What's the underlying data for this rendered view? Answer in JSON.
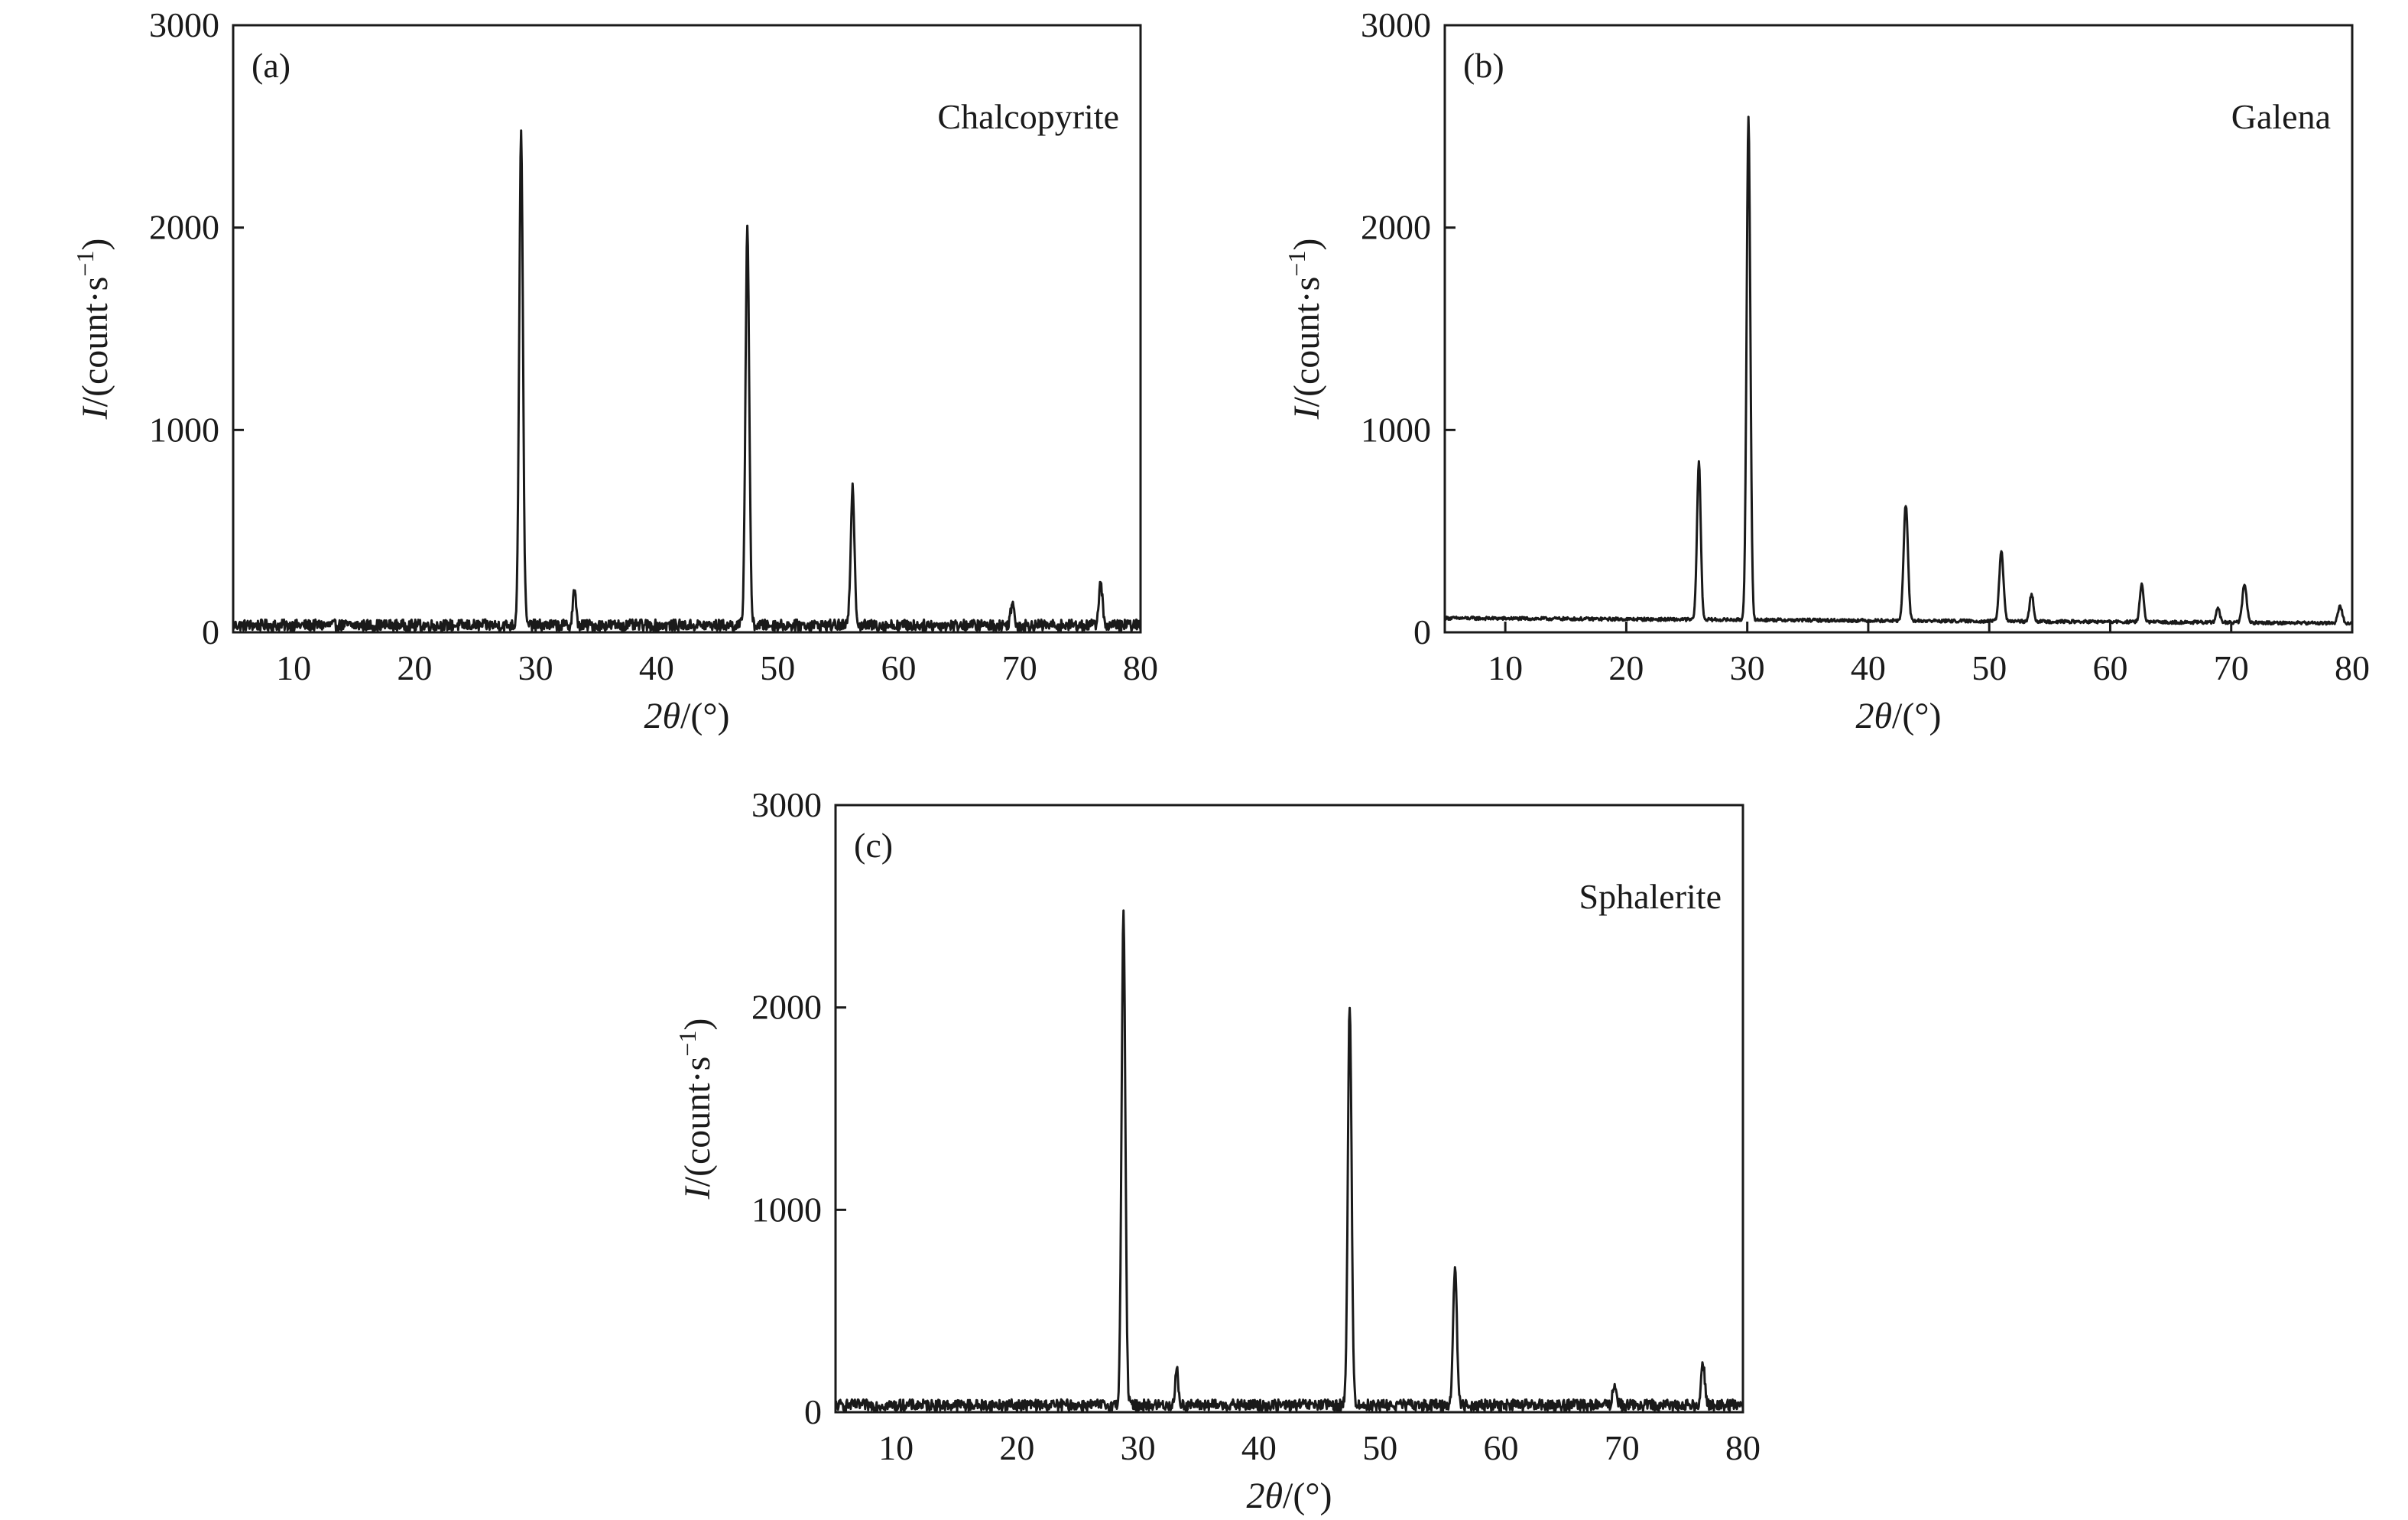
{
  "chart_data": [
    {
      "type": "line",
      "panel_label": "(a)",
      "series_label": "Chalcopyrite",
      "xlabel_var": "2θ",
      "xlabel_unit": "/(°)",
      "ylabel_var": "I",
      "ylabel_unit": "/(count·s",
      "ylabel_exp": "−1",
      "ylabel_close": ")",
      "xlim": [
        5,
        80
      ],
      "ylim": [
        0,
        3000
      ],
      "x_ticks": [
        10,
        20,
        30,
        40,
        50,
        60,
        70,
        80
      ],
      "y_ticks": [
        0,
        1000,
        2000,
        3000
      ],
      "x_tick_labels": [
        "10",
        "20",
        "30",
        "40",
        "50",
        "60",
        "70",
        "80"
      ],
      "y_tick_labels": [
        "0",
        "1000",
        "2000",
        "3000"
      ],
      "baseline": 35,
      "noise": 28,
      "peaks": [
        {
          "x": 28.8,
          "y": 2460,
          "w": 0.22
        },
        {
          "x": 33.2,
          "y": 210,
          "w": 0.18
        },
        {
          "x": 47.5,
          "y": 2010,
          "w": 0.22
        },
        {
          "x": 56.2,
          "y": 720,
          "w": 0.22
        },
        {
          "x": 69.4,
          "y": 140,
          "w": 0.22
        },
        {
          "x": 76.7,
          "y": 240,
          "w": 0.22
        }
      ],
      "grid": false,
      "legend": "none"
    },
    {
      "type": "line",
      "panel_label": "(b)",
      "series_label": "Galena",
      "xlabel_var": "2θ",
      "xlabel_unit": "/(°)",
      "ylabel_var": "I",
      "ylabel_unit": "/(count·s",
      "ylabel_exp": "−1",
      "ylabel_close": ")",
      "xlim": [
        5,
        80
      ],
      "ylim": [
        0,
        3000
      ],
      "x_ticks": [
        10,
        20,
        30,
        40,
        50,
        60,
        70,
        80
      ],
      "y_ticks": [
        0,
        1000,
        2000,
        3000
      ],
      "x_tick_labels": [
        "10",
        "20",
        "30",
        "40",
        "50",
        "60",
        "70",
        "80"
      ],
      "y_tick_labels": [
        "0",
        "1000",
        "2000",
        "3000"
      ],
      "baseline_start": 70,
      "baseline_end": 45,
      "noise": 8,
      "peaks": [
        {
          "x": 26.0,
          "y": 840,
          "w": 0.22
        },
        {
          "x": 30.1,
          "y": 2540,
          "w": 0.22
        },
        {
          "x": 43.1,
          "y": 630,
          "w": 0.25
        },
        {
          "x": 51.0,
          "y": 400,
          "w": 0.25
        },
        {
          "x": 53.5,
          "y": 190,
          "w": 0.22
        },
        {
          "x": 62.6,
          "y": 240,
          "w": 0.22
        },
        {
          "x": 68.9,
          "y": 120,
          "w": 0.22
        },
        {
          "x": 71.1,
          "y": 240,
          "w": 0.25
        },
        {
          "x": 79.0,
          "y": 130,
          "w": 0.25
        }
      ],
      "grid": false,
      "legend": "none"
    },
    {
      "type": "line",
      "panel_label": "(c)",
      "series_label": "Sphalerite",
      "xlabel_var": "2θ",
      "xlabel_unit": "/(°)",
      "ylabel_var": "I",
      "ylabel_unit": "/(count·s",
      "ylabel_exp": "−1",
      "ylabel_close": ")",
      "xlim": [
        5,
        80
      ],
      "ylim": [
        0,
        3000
      ],
      "x_ticks": [
        10,
        20,
        30,
        40,
        50,
        60,
        70,
        80
      ],
      "y_ticks": [
        0,
        1000,
        2000,
        3000
      ],
      "x_tick_labels": [
        "10",
        "20",
        "30",
        "40",
        "50",
        "60",
        "70",
        "80"
      ],
      "y_tick_labels": [
        "0",
        "1000",
        "2000",
        "3000"
      ],
      "baseline": 35,
      "noise": 28,
      "peaks": [
        {
          "x": 28.8,
          "y": 2460,
          "w": 0.22
        },
        {
          "x": 33.2,
          "y": 210,
          "w": 0.18
        },
        {
          "x": 47.5,
          "y": 2010,
          "w": 0.22
        },
        {
          "x": 56.2,
          "y": 720,
          "w": 0.22
        },
        {
          "x": 69.4,
          "y": 140,
          "w": 0.22
        },
        {
          "x": 76.7,
          "y": 240,
          "w": 0.22
        }
      ],
      "grid": false,
      "legend": "none"
    }
  ]
}
